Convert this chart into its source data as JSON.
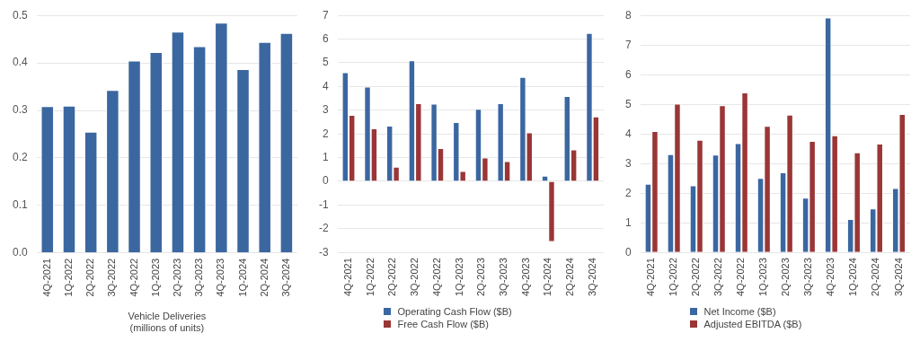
{
  "chart_data": [
    {
      "type": "bar",
      "xlabel": "Vehicle Deliveries\n(millions of units)",
      "categories": [
        "4Q-2021",
        "1Q-2022",
        "2Q-2022",
        "3Q-2022",
        "4Q-2022",
        "1Q-2023",
        "2Q-2023",
        "3Q-2023",
        "4Q-2023",
        "1Q-2024",
        "2Q-2024",
        "3Q-2024"
      ],
      "series": [
        {
          "color": "#3b67a1",
          "values": [
            0.309,
            0.31,
            0.255,
            0.343,
            0.405,
            0.423,
            0.466,
            0.435,
            0.485,
            0.387,
            0.444,
            0.463
          ]
        }
      ],
      "ylim": [
        0,
        0.5
      ],
      "yticks": [
        {
          "value": 0,
          "label": "0.0"
        },
        0.1,
        0.2,
        0.3,
        0.4,
        0.5
      ],
      "grid": "y"
    },
    {
      "type": "bar",
      "categories": [
        "4Q-2021",
        "1Q-2022",
        "2Q-2022",
        "3Q-2022",
        "4Q-2022",
        "1Q-2023",
        "2Q-2023",
        "3Q-2023",
        "4Q-2023",
        "1Q-2024",
        "2Q-2024",
        "3Q-2024"
      ],
      "series": [
        {
          "name": "Operating Cash Flow ($B)",
          "color": "#3b67a1",
          "values": [
            4.6,
            4.0,
            2.35,
            5.1,
            3.28,
            2.5,
            3.06,
            3.3,
            4.4,
            0.24,
            3.6,
            6.26
          ]
        },
        {
          "name": "Free Cash Flow ($B)",
          "color": "#9a3636",
          "values": [
            2.8,
            2.23,
            0.62,
            3.3,
            1.4,
            0.44,
            1.0,
            0.85,
            2.06,
            -2.53,
            1.34,
            2.74
          ]
        }
      ],
      "ylim": [
        -3,
        7
      ],
      "yticks": [
        -3,
        -2,
        -1,
        0,
        1,
        2,
        3,
        4,
        5,
        6,
        7
      ],
      "grid": "y",
      "legend": "bottom"
    },
    {
      "type": "bar",
      "categories": [
        "4Q-2021",
        "1Q-2022",
        "2Q-2022",
        "3Q-2022",
        "4Q-2022",
        "1Q-2023",
        "2Q-2023",
        "3Q-2023",
        "4Q-2023",
        "1Q-2024",
        "2Q-2024",
        "3Q-2024"
      ],
      "series": [
        {
          "name": "Net Income ($B)",
          "color": "#3b67a1",
          "values": [
            2.32,
            3.32,
            2.26,
            3.3,
            3.69,
            2.51,
            2.7,
            1.85,
            7.93,
            1.13,
            1.48,
            2.17
          ]
        },
        {
          "name": "Adjusted EBITDA ($B)",
          "color": "#9a3636",
          "values": [
            4.1,
            5.02,
            3.8,
            4.97,
            5.4,
            4.27,
            4.65,
            3.76,
            3.95,
            3.38,
            3.67,
            4.67
          ]
        }
      ],
      "ylim": [
        0,
        8
      ],
      "yticks": [
        0,
        1,
        2,
        3,
        4,
        5,
        6,
        7,
        8
      ],
      "grid": "y",
      "legend": "bottom"
    }
  ]
}
